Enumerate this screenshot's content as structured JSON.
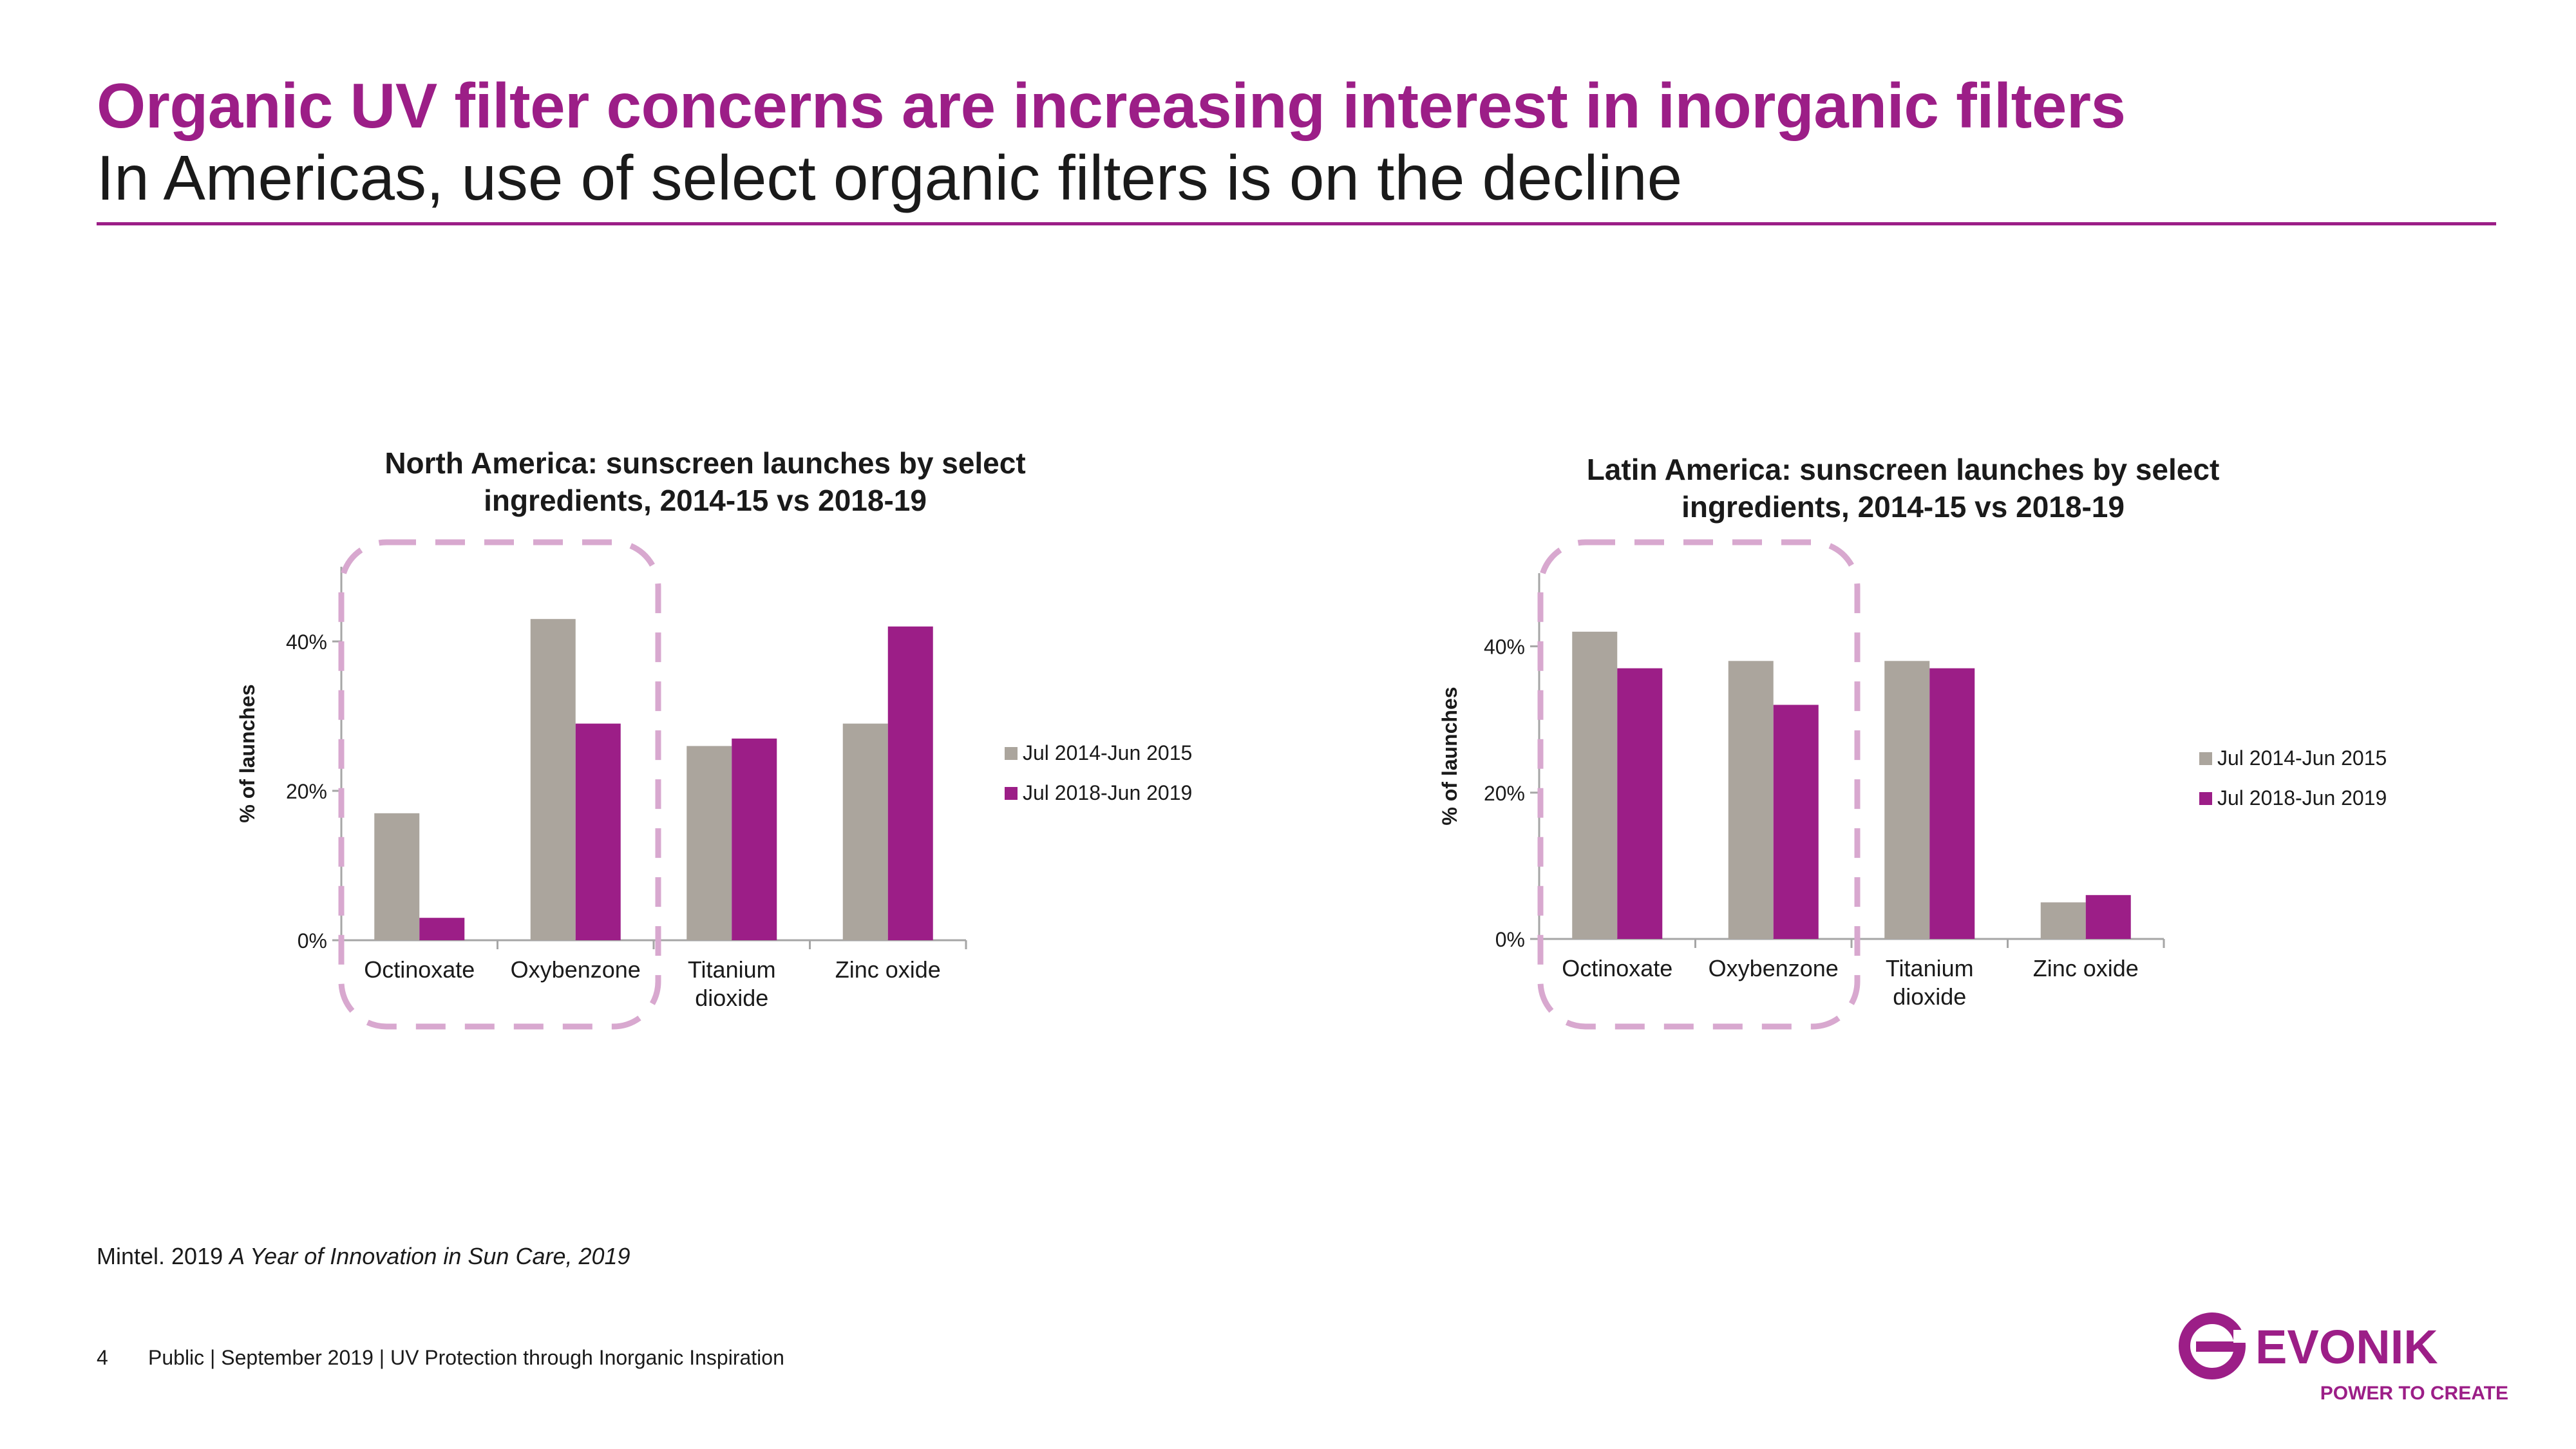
{
  "header": {
    "title": "Organic UV filter concerns are increasing interest in inorganic filters",
    "subtitle": "In Americas, use of select organic filters is on the decline"
  },
  "colors": {
    "accent": "#9c1e87",
    "series1": "#aba59d",
    "series2": "#9c1e87",
    "highlight": "#d8a8cf"
  },
  "chart_data": [
    {
      "id": "north-america",
      "type": "bar",
      "title_lines": [
        "North America: sunscreen launches by select",
        "ingredients, 2014-15 vs 2018-19"
      ],
      "ylabel": "% of launches",
      "xlabel": "",
      "ylim": [
        0,
        50
      ],
      "yticks": [
        0,
        20,
        40
      ],
      "ytick_labels": [
        "0%",
        "20%",
        "40%"
      ],
      "grid": false,
      "legend_position": "right",
      "categories": [
        [
          "Octinoxate"
        ],
        [
          "Oxybenzone"
        ],
        [
          "Titanium",
          "dioxide"
        ],
        [
          "Zinc oxide"
        ]
      ],
      "series": [
        {
          "name": "Jul 2014-Jun 2015",
          "values": [
            17,
            43,
            26,
            29
          ]
        },
        {
          "name": "Jul 2018-Jun 2019",
          "values": [
            3,
            29,
            27,
            42
          ]
        }
      ],
      "highlight_categories": [
        "Octinoxate",
        "Oxybenzone"
      ]
    },
    {
      "id": "latin-america",
      "type": "bar",
      "title_lines": [
        "Latin America: sunscreen launches by select",
        "ingredients, 2014-15 vs 2018-19"
      ],
      "ylabel": "% of launches",
      "xlabel": "",
      "ylim": [
        0,
        50
      ],
      "yticks": [
        0,
        20,
        40
      ],
      "ytick_labels": [
        "0%",
        "20%",
        "40%"
      ],
      "grid": false,
      "legend_position": "right",
      "categories": [
        [
          "Octinoxate"
        ],
        [
          "Oxybenzone"
        ],
        [
          "Titanium",
          "dioxide"
        ],
        [
          "Zinc oxide"
        ]
      ],
      "series": [
        {
          "name": "Jul 2014-Jun 2015",
          "values": [
            42,
            38,
            38,
            5
          ]
        },
        {
          "name": "Jul 2018-Jun 2019",
          "values": [
            37,
            32,
            37,
            6
          ]
        }
      ],
      "highlight_categories": [
        "Octinoxate",
        "Oxybenzone"
      ]
    }
  ],
  "source": {
    "prefix": "Mintel. 2019 ",
    "publication": "A Year of Innovation in Sun Care, 2019"
  },
  "footer": {
    "page_number": "4",
    "text": "Public | September 2019 | UV Protection through Inorganic Inspiration"
  },
  "logo": {
    "name": "EVONIK",
    "tagline": "POWER TO CREATE"
  }
}
